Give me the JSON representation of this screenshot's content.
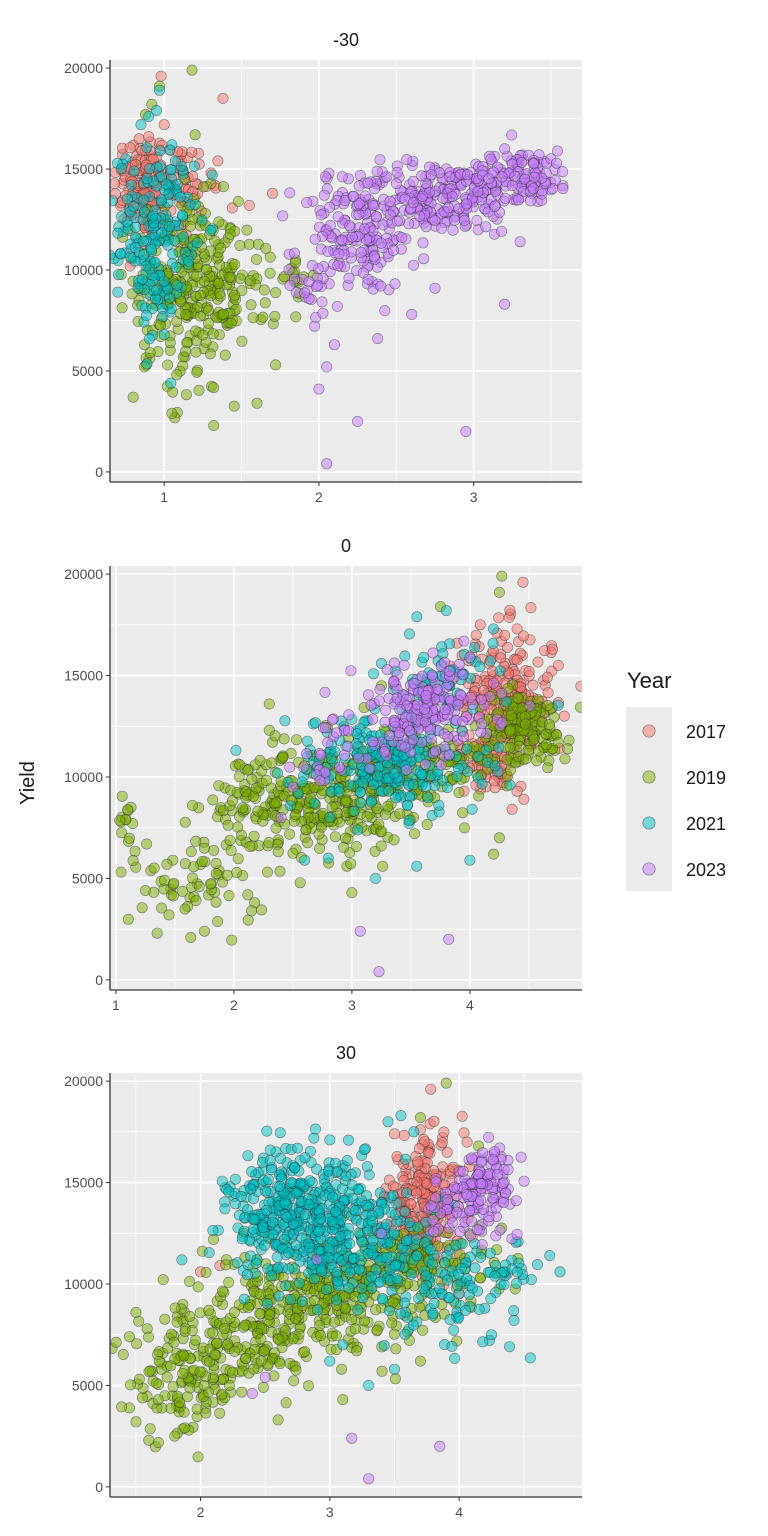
{
  "figure": {
    "ylabel": "Yield",
    "legend_title": "Year",
    "legend_items": [
      "2017",
      "2019",
      "2021",
      "2023"
    ],
    "colors": {
      "2017": "#F8766D",
      "2019": "#7CAE00",
      "2021": "#00BFC4",
      "2023": "#C77CFF"
    },
    "panel_background": "#EBEBEB",
    "grid_color": "#FFFFFF"
  },
  "chart_data": [
    {
      "type": "scatter",
      "title": "-30",
      "xlabel": "",
      "ylabel": "Yield",
      "xlim": [
        0.65,
        3.7
      ],
      "ylim": [
        -500,
        20400
      ],
      "xticks": [
        1,
        2,
        3
      ],
      "yticks": [
        0,
        5000,
        10000,
        15000,
        20000
      ],
      "grid": true,
      "series": [
        {
          "name": "2017",
          "clusters": [
            [
              0.85,
              14300,
              0.09,
              1300,
              110
            ],
            [
              1.05,
              14000,
              0.12,
              1300,
              60
            ],
            [
              1.3,
              14200,
              0.1,
              800,
              12
            ]
          ],
          "outliers": [
            [
              0.98,
              19600
            ],
            [
              1.38,
              18500
            ],
            [
              1.0,
              17200
            ],
            [
              0.9,
              16600
            ],
            [
              1.7,
              13800
            ],
            [
              1.55,
              13200
            ],
            [
              0.78,
              10200
            ],
            [
              0.85,
              11200
            ]
          ]
        },
        {
          "name": "2019",
          "clusters": [
            [
              1.15,
              9700,
              0.17,
              1900,
              230
            ],
            [
              1.2,
              6200,
              0.14,
              1400,
              50
            ],
            [
              1.55,
              9000,
              0.18,
              1500,
              40
            ],
            [
              1.85,
              9600,
              0.06,
              700,
              14
            ]
          ],
          "outliers": [
            [
              1.18,
              19900
            ],
            [
              0.92,
              18200
            ],
            [
              0.97,
              19100
            ],
            [
              0.88,
              17700
            ],
            [
              1.2,
              16700
            ],
            [
              1.32,
              2300
            ],
            [
              1.05,
              2900
            ],
            [
              0.8,
              3700
            ],
            [
              1.6,
              3400
            ],
            [
              1.72,
              5300
            ]
          ]
        },
        {
          "name": "2021",
          "clusters": [
            [
              0.95,
              12300,
              0.12,
              1800,
              160
            ],
            [
              0.92,
              8300,
              0.09,
              1300,
              30
            ]
          ],
          "outliers": [
            [
              0.9,
              17600
            ],
            [
              0.85,
              17200
            ],
            [
              0.95,
              17900
            ],
            [
              0.97,
              18900
            ],
            [
              1.05,
              16200
            ],
            [
              0.72,
              10800
            ],
            [
              1.0,
              6800
            ]
          ]
        },
        {
          "name": "2023",
          "clusters": [
            [
              2.25,
              11400,
              0.19,
              1300,
              140
            ],
            [
              2.75,
              13600,
              0.3,
              900,
              220
            ],
            [
              3.3,
              14700,
              0.17,
              600,
              120
            ],
            [
              1.95,
              9300,
              0.08,
              900,
              20
            ]
          ],
          "outliers": [
            [
              2.05,
              400
            ],
            [
              2.25,
              2500
            ],
            [
              2.95,
              2000
            ],
            [
              2.0,
              4100
            ],
            [
              2.05,
              5200
            ],
            [
              2.1,
              6300
            ],
            [
              2.38,
              6600
            ],
            [
              2.6,
              7800
            ],
            [
              2.75,
              9100
            ],
            [
              3.2,
              8300
            ],
            [
              3.3,
              11400
            ],
            [
              2.4,
              9200
            ]
          ]
        }
      ]
    },
    {
      "type": "scatter",
      "title": "0",
      "xlabel": "",
      "ylabel": "Yield",
      "xlim": [
        0.95,
        4.95
      ],
      "ylim": [
        -500,
        20400
      ],
      "xticks": [
        1,
        2,
        3,
        4
      ],
      "yticks": [
        0,
        5000,
        10000,
        15000,
        20000
      ],
      "grid": true,
      "series": [
        {
          "name": "2017",
          "clusters": [
            [
              4.3,
              13700,
              0.2,
              1800,
              240
            ],
            [
              4.15,
              11000,
              0.1,
              900,
              30
            ]
          ],
          "outliers": [
            [
              4.45,
              19600
            ],
            [
              4.4,
              17300
            ],
            [
              4.7,
              16300
            ],
            [
              4.8,
              13000
            ],
            [
              4.05,
              9600
            ],
            [
              4.4,
              9300
            ],
            [
              4.75,
              15500
            ]
          ]
        },
        {
          "name": "2019",
          "clusters": [
            [
              1.7,
              4900,
              0.3,
              1300,
              70
            ],
            [
              2.2,
              8600,
              0.22,
              1300,
              70
            ],
            [
              2.75,
              8800,
              0.35,
              1300,
              220
            ],
            [
              3.5,
              10400,
              0.35,
              1100,
              170
            ],
            [
              4.45,
              12400,
              0.2,
              900,
              160
            ],
            [
              1.1,
              7700,
              0.04,
              700,
              15
            ]
          ],
          "outliers": [
            [
              4.27,
              19900
            ],
            [
              4.25,
              19100
            ],
            [
              3.75,
              18400
            ],
            [
              2.3,
              13600
            ],
            [
              2.3,
              12300
            ],
            [
              1.35,
              2300
            ],
            [
              1.45,
              3200
            ],
            [
              1.75,
              2400
            ],
            [
              3.0,
              4300
            ],
            [
              4.2,
              6200
            ],
            [
              4.25,
              7000
            ],
            [
              1.65,
              8600
            ],
            [
              2.05,
              10600
            ],
            [
              3.25,
              14500
            ]
          ]
        },
        {
          "name": "2021",
          "clusters": [
            [
              3.3,
              10700,
              0.4,
              1300,
              240
            ],
            [
              3.8,
              14900,
              0.2,
              900,
              60
            ]
          ],
          "outliers": [
            [
              3.55,
              17900
            ],
            [
              3.8,
              18200
            ],
            [
              4.2,
              17300
            ],
            [
              3.25,
              15600
            ],
            [
              2.8,
              6000
            ],
            [
              3.55,
              5600
            ],
            [
              4.0,
              5900
            ],
            [
              3.2,
              5000
            ],
            [
              2.6,
              5900
            ]
          ]
        },
        {
          "name": "2023",
          "clusters": [
            [
              3.6,
              13300,
              0.3,
              1100,
              200
            ],
            [
              2.85,
              11000,
              0.25,
              900,
              30
            ]
          ],
          "outliers": [
            [
              3.07,
              2400
            ],
            [
              3.23,
              400
            ],
            [
              3.82,
              2000
            ],
            [
              2.4,
              8000
            ],
            [
              2.5,
              9500
            ],
            [
              3.95,
              16700
            ],
            [
              4.0,
              15900
            ]
          ]
        }
      ]
    },
    {
      "type": "scatter",
      "title": "30",
      "xlabel": "",
      "ylabel": "Yield",
      "xlim": [
        1.3,
        4.95
      ],
      "ylim": [
        -500,
        20400
      ],
      "xticks": [
        2,
        3,
        4
      ],
      "yticks": [
        0,
        5000,
        10000,
        15000,
        20000
      ],
      "grid": true,
      "series": [
        {
          "name": "2017",
          "clusters": [
            [
              3.75,
              14300,
              0.15,
              1400,
              200
            ],
            [
              3.6,
              12500,
              0.1,
              800,
              30
            ]
          ],
          "outliers": [
            [
              3.78,
              19600
            ],
            [
              3.7,
              17600
            ],
            [
              3.5,
              17400
            ],
            [
              2.0,
              10600
            ],
            [
              2.15,
              10900
            ],
            [
              4.1,
              12300
            ]
          ]
        },
        {
          "name": "2019",
          "clusters": [
            [
              1.9,
              5400,
              0.22,
              1500,
              150
            ],
            [
              2.6,
              8600,
              0.3,
              1300,
              200
            ],
            [
              3.2,
              9900,
              0.3,
              1300,
              180
            ],
            [
              3.8,
              11000,
              0.25,
              1100,
              100
            ],
            [
              2.4,
              6300,
              0.2,
              900,
              40
            ]
          ],
          "outliers": [
            [
              3.9,
              19900
            ],
            [
              3.7,
              18200
            ],
            [
              1.45,
              7400
            ],
            [
              1.5,
              8600
            ],
            [
              1.6,
              2300
            ],
            [
              1.8,
              2500
            ],
            [
              2.6,
              3300
            ],
            [
              3.1,
              4300
            ],
            [
              3.7,
              6200
            ],
            [
              4.15,
              16800
            ],
            [
              2.1,
              12200
            ]
          ]
        },
        {
          "name": "2021",
          "clusters": [
            [
              2.65,
              13400,
              0.22,
              1500,
              260
            ],
            [
              3.05,
              13300,
              0.28,
              1600,
              200
            ],
            [
              3.3,
              11400,
              0.3,
              1200,
              120
            ],
            [
              3.85,
              9600,
              0.3,
              1300,
              90
            ],
            [
              4.3,
              10800,
              0.2,
              500,
              30
            ]
          ],
          "outliers": [
            [
              2.75,
              16700
            ],
            [
              3.0,
              17100
            ],
            [
              3.45,
              18000
            ],
            [
              3.55,
              18300
            ],
            [
              3.65,
              17500
            ],
            [
              4.7,
              11400
            ],
            [
              4.78,
              10600
            ],
            [
              3.3,
              5000
            ],
            [
              3.1,
              7000
            ],
            [
              3.5,
              5800
            ],
            [
              3.0,
              6200
            ],
            [
              4.05,
              8700
            ],
            [
              4.25,
              7500
            ]
          ]
        },
        {
          "name": "2023",
          "clusters": [
            [
              4.2,
              14900,
              0.13,
              900,
              130
            ],
            [
              3.95,
              13500,
              0.12,
              800,
              30
            ]
          ],
          "outliers": [
            [
              3.17,
              2400
            ],
            [
              3.3,
              400
            ],
            [
              3.85,
              2000
            ],
            [
              2.4,
              4600
            ],
            [
              2.5,
              5400
            ],
            [
              2.9,
              11200
            ],
            [
              3.4,
              12500
            ]
          ]
        }
      ]
    }
  ]
}
